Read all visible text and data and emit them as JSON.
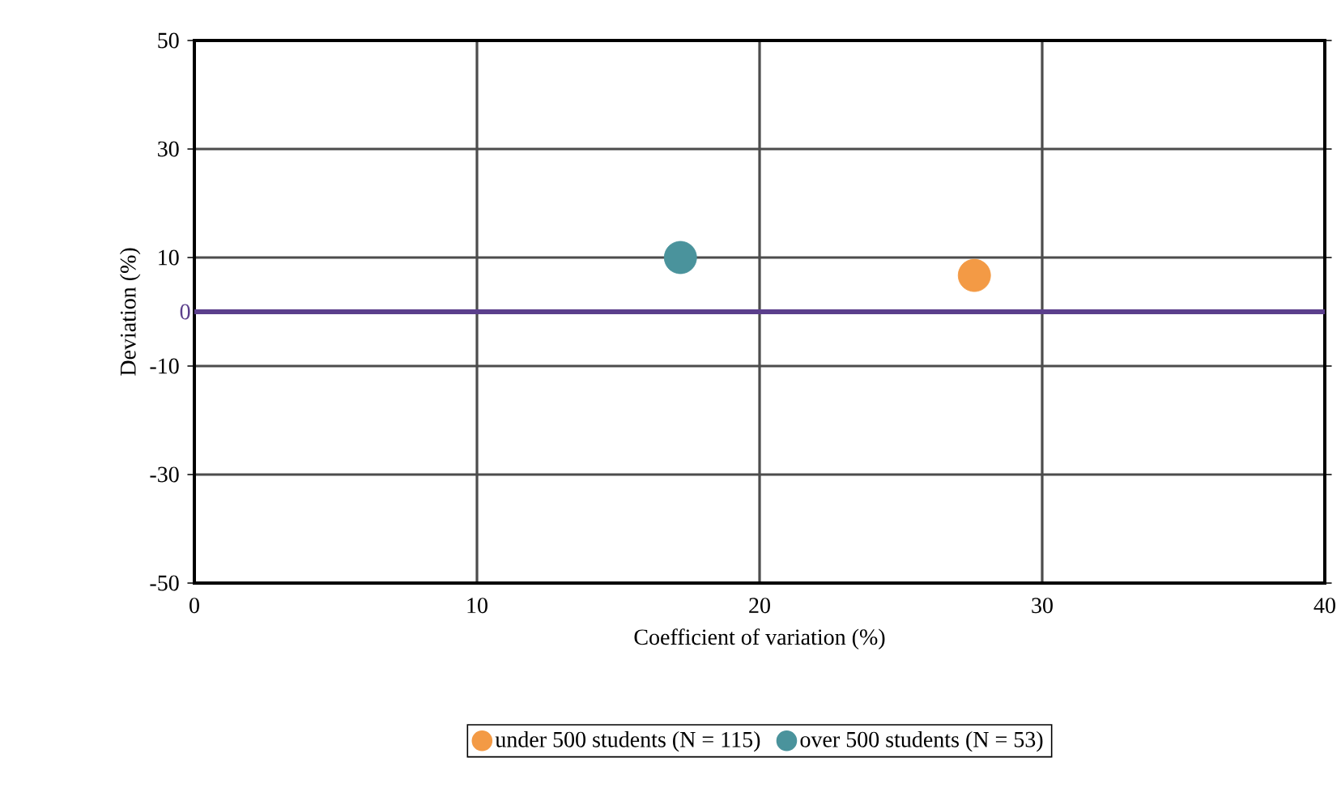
{
  "chart_data": {
    "type": "scatter",
    "xlabel": "Coefficient of variation (%)",
    "ylabel": "Deviation (%)",
    "xlim": [
      0,
      40
    ],
    "xticks": [
      0,
      10,
      20,
      30,
      40
    ],
    "ylim": [
      -50,
      50
    ],
    "yticks": [
      -50,
      -30,
      -10,
      10,
      30,
      50
    ],
    "grid": true,
    "legend": "bottom",
    "marker": "circle",
    "ref_lines": [
      {
        "axis": "y",
        "value": 0,
        "label": "0",
        "color": "#5b3f8c"
      }
    ],
    "series": [
      {
        "name": "under 500 students (N = 115)",
        "color": "#f39a45",
        "x": [
          27.6
        ],
        "values": [
          6.7
        ]
      },
      {
        "name": "over 500 students (N = 53)",
        "color": "#4a939c",
        "x": [
          17.2
        ],
        "values": [
          10
        ]
      }
    ]
  }
}
